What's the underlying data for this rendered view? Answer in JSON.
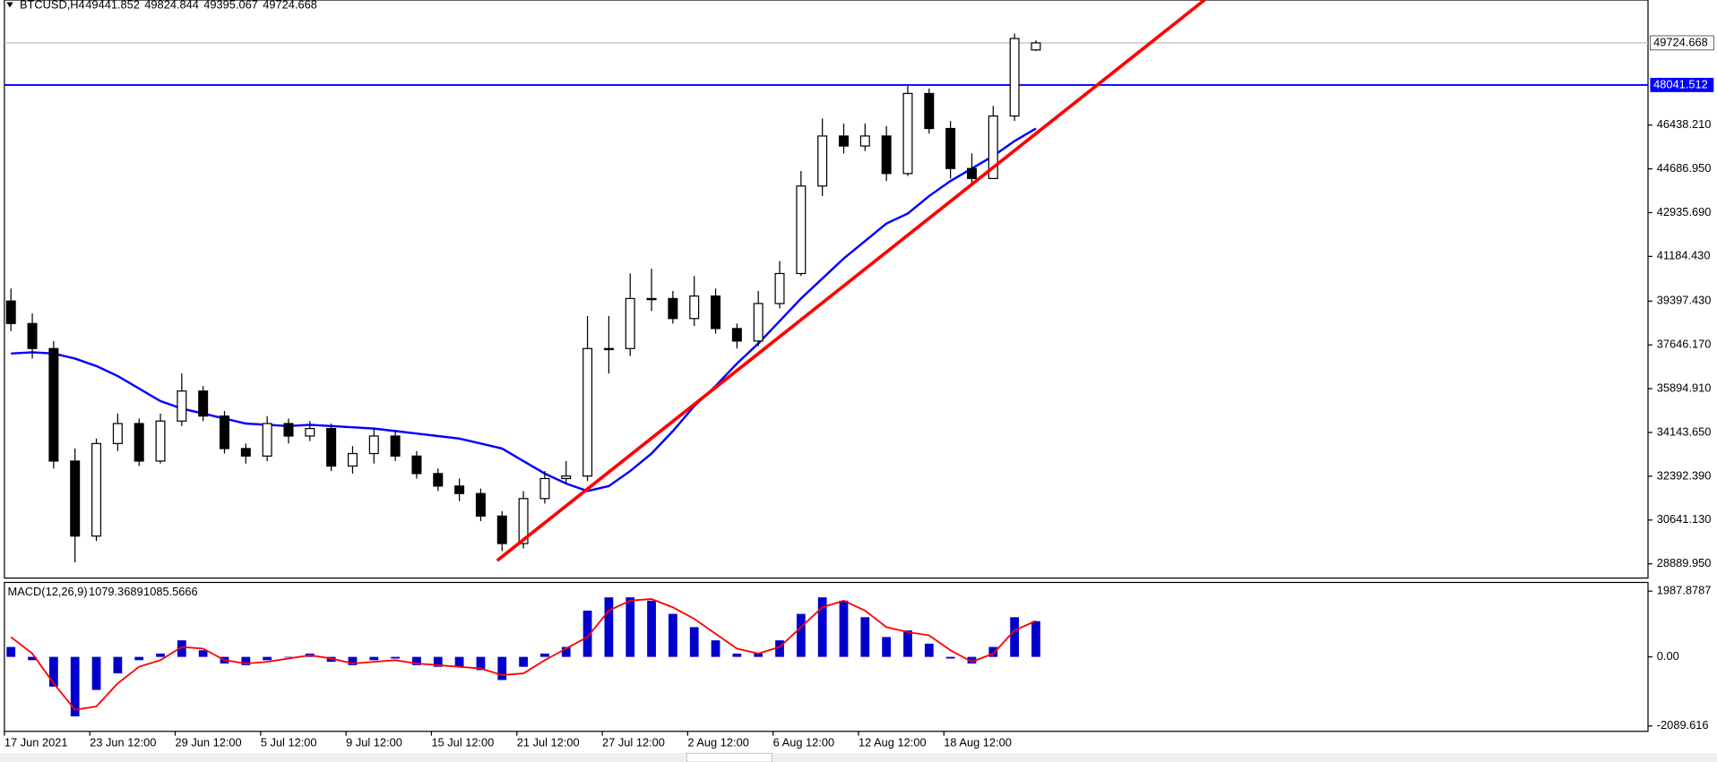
{
  "chart_data": [
    {
      "type": "candlestick",
      "title": "BTCUSD,H4",
      "categories": [
        "17 Jun 2021",
        null,
        null,
        null,
        "23 Jun 12:00",
        null,
        null,
        null,
        "29 Jun 12:00",
        null,
        null,
        null,
        "5 Jul 12:00",
        null,
        null,
        null,
        "9 Jul 12:00",
        null,
        null,
        null,
        "15 Jul 12:00",
        null,
        null,
        null,
        "21 Jul 12:00",
        null,
        null,
        null,
        "27 Jul 12:00",
        null,
        null,
        null,
        "2 Aug 12:00",
        null,
        null,
        null,
        "6 Aug 12:00",
        null,
        null,
        null,
        "12 Aug 12:00",
        null,
        null,
        null,
        "18 Aug 12:00",
        null,
        null,
        null,
        null
      ],
      "open": [
        39400,
        38500,
        37500,
        33000,
        30000,
        33700,
        34500,
        33000,
        34600,
        35800,
        34800,
        33500,
        33200,
        34500,
        34000,
        34300,
        32800,
        33300,
        34000,
        33200,
        32500,
        32000,
        31700,
        30800,
        29700,
        31500,
        32300,
        32400,
        37500,
        37500,
        39500,
        39500,
        38700,
        39600,
        38300,
        37800,
        39300,
        40500,
        44000,
        46000,
        45600,
        46000,
        44500,
        47700,
        46300,
        44700,
        44300,
        46800,
        49441.852
      ],
      "high": [
        39900,
        38900,
        37800,
        33500,
        33900,
        34900,
        34700,
        34900,
        36500,
        36000,
        35000,
        33700,
        34800,
        34700,
        34600,
        34500,
        33600,
        34300,
        34200,
        33400,
        32700,
        32300,
        31900,
        31000,
        31800,
        32600,
        33000,
        38800,
        38800,
        40500,
        40700,
        39800,
        40400,
        39900,
        38500,
        39800,
        41000,
        44600,
        46700,
        46500,
        46500,
        46400,
        48000,
        47900,
        46600,
        45300,
        47200,
        50100,
        49824.844
      ],
      "low": [
        38200,
        37100,
        32700,
        28950,
        29800,
        33400,
        32800,
        32900,
        34400,
        34600,
        33300,
        32900,
        33000,
        33700,
        33800,
        32600,
        32500,
        32900,
        33000,
        32300,
        31800,
        31400,
        30600,
        29400,
        29500,
        31300,
        32100,
        32200,
        36500,
        37200,
        39000,
        38500,
        38400,
        38100,
        37500,
        37600,
        39100,
        40400,
        43600,
        45300,
        45400,
        44200,
        44400,
        46100,
        44300,
        44000,
        44300,
        46600,
        49395.067
      ],
      "close": [
        38500,
        37500,
        33000,
        30000,
        33700,
        34500,
        33000,
        34600,
        35800,
        34800,
        33500,
        33200,
        34500,
        34000,
        34300,
        32800,
        33300,
        34000,
        33200,
        32500,
        32000,
        31700,
        30800,
        29700,
        31500,
        32300,
        32400,
        37500,
        37500,
        39500,
        39500,
        38700,
        39600,
        38300,
        37800,
        39300,
        40500,
        44000,
        46000,
        45600,
        46000,
        44500,
        47700,
        46300,
        44700,
        44300,
        46800,
        49900,
        49724.668
      ],
      "candle_color": "#000000",
      "up_fill": "#ffffff",
      "down_fill": "#000000",
      "overlays": [
        {
          "color": "#0000ff",
          "values": [
            37300,
            37350,
            37300,
            37100,
            36800,
            36400,
            35900,
            35400,
            35100,
            34900,
            34700,
            34500,
            34450,
            34400,
            34450,
            34400,
            34350,
            34300,
            34200,
            34100,
            34000,
            33900,
            33700,
            33500,
            33000,
            32500,
            32100,
            31800,
            32000,
            32600,
            33300,
            34200,
            35200,
            36000,
            36900,
            37700,
            38600,
            39500,
            40300,
            41100,
            41800,
            42500,
            42900,
            43600,
            44200,
            44700,
            45200,
            45800,
            46300
          ]
        }
      ],
      "levels": [
        {
          "value": 48041.512,
          "color": "#0000ff"
        }
      ],
      "ylim": [
        28320,
        51440
      ],
      "yticks": [
        {
          "value": 46438.21,
          "label": "46438.210"
        },
        {
          "value": 44686.95,
          "label": "44686.950"
        },
        {
          "value": 42935.69,
          "label": "42935.690"
        },
        {
          "value": 41184.43,
          "label": "41184.430"
        },
        {
          "value": 39397.43,
          "label": "39397.430"
        },
        {
          "value": 37646.17,
          "label": "37646.170"
        },
        {
          "value": 35894.91,
          "label": "35894.910"
        },
        {
          "value": 34143.65,
          "label": "34143.650"
        },
        {
          "value": 32392.39,
          "label": "32392.390"
        },
        {
          "value": 30641.13,
          "label": "30641.130"
        },
        {
          "value": 28889.95,
          "label": "28889.950"
        }
      ]
    },
    {
      "type": "macd",
      "title": "MACD(12,26,9)",
      "series": [
        {
          "color": "#0000cc",
          "values": [
            300,
            -100,
            -900,
            -1800,
            -1000,
            -500,
            -100,
            100,
            500,
            200,
            -200,
            -250,
            -100,
            0,
            100,
            -150,
            -250,
            -100,
            -50,
            -250,
            -300,
            -300,
            -400,
            -700,
            -300,
            100,
            300,
            1400,
            1800,
            1800,
            1700,
            1300,
            900,
            500,
            100,
            100,
            500,
            1300,
            1800,
            1700,
            1200,
            600,
            800,
            400,
            -50,
            -200,
            300,
            1200,
            1079.3689
          ]
        },
        {
          "color": "#ff0000",
          "values": [
            600,
            100,
            -800,
            -1600,
            -1500,
            -800,
            -300,
            -100,
            300,
            250,
            -100,
            -200,
            -150,
            -50,
            50,
            -50,
            -200,
            -150,
            -100,
            -200,
            -250,
            -300,
            -350,
            -550,
            -500,
            -100,
            250,
            600,
            1400,
            1700,
            1750,
            1500,
            1150,
            700,
            250,
            100,
            300,
            900,
            1500,
            1700,
            1400,
            900,
            750,
            650,
            200,
            -150,
            100,
            800,
            1085.5666
          ]
        }
      ],
      "ylim": [
        -2252,
        2218
      ],
      "yticks": [
        1987.8787,
        {
          "value": 0,
          "label": "0.00"
        },
        -2089.616
      ]
    }
  ]
}
